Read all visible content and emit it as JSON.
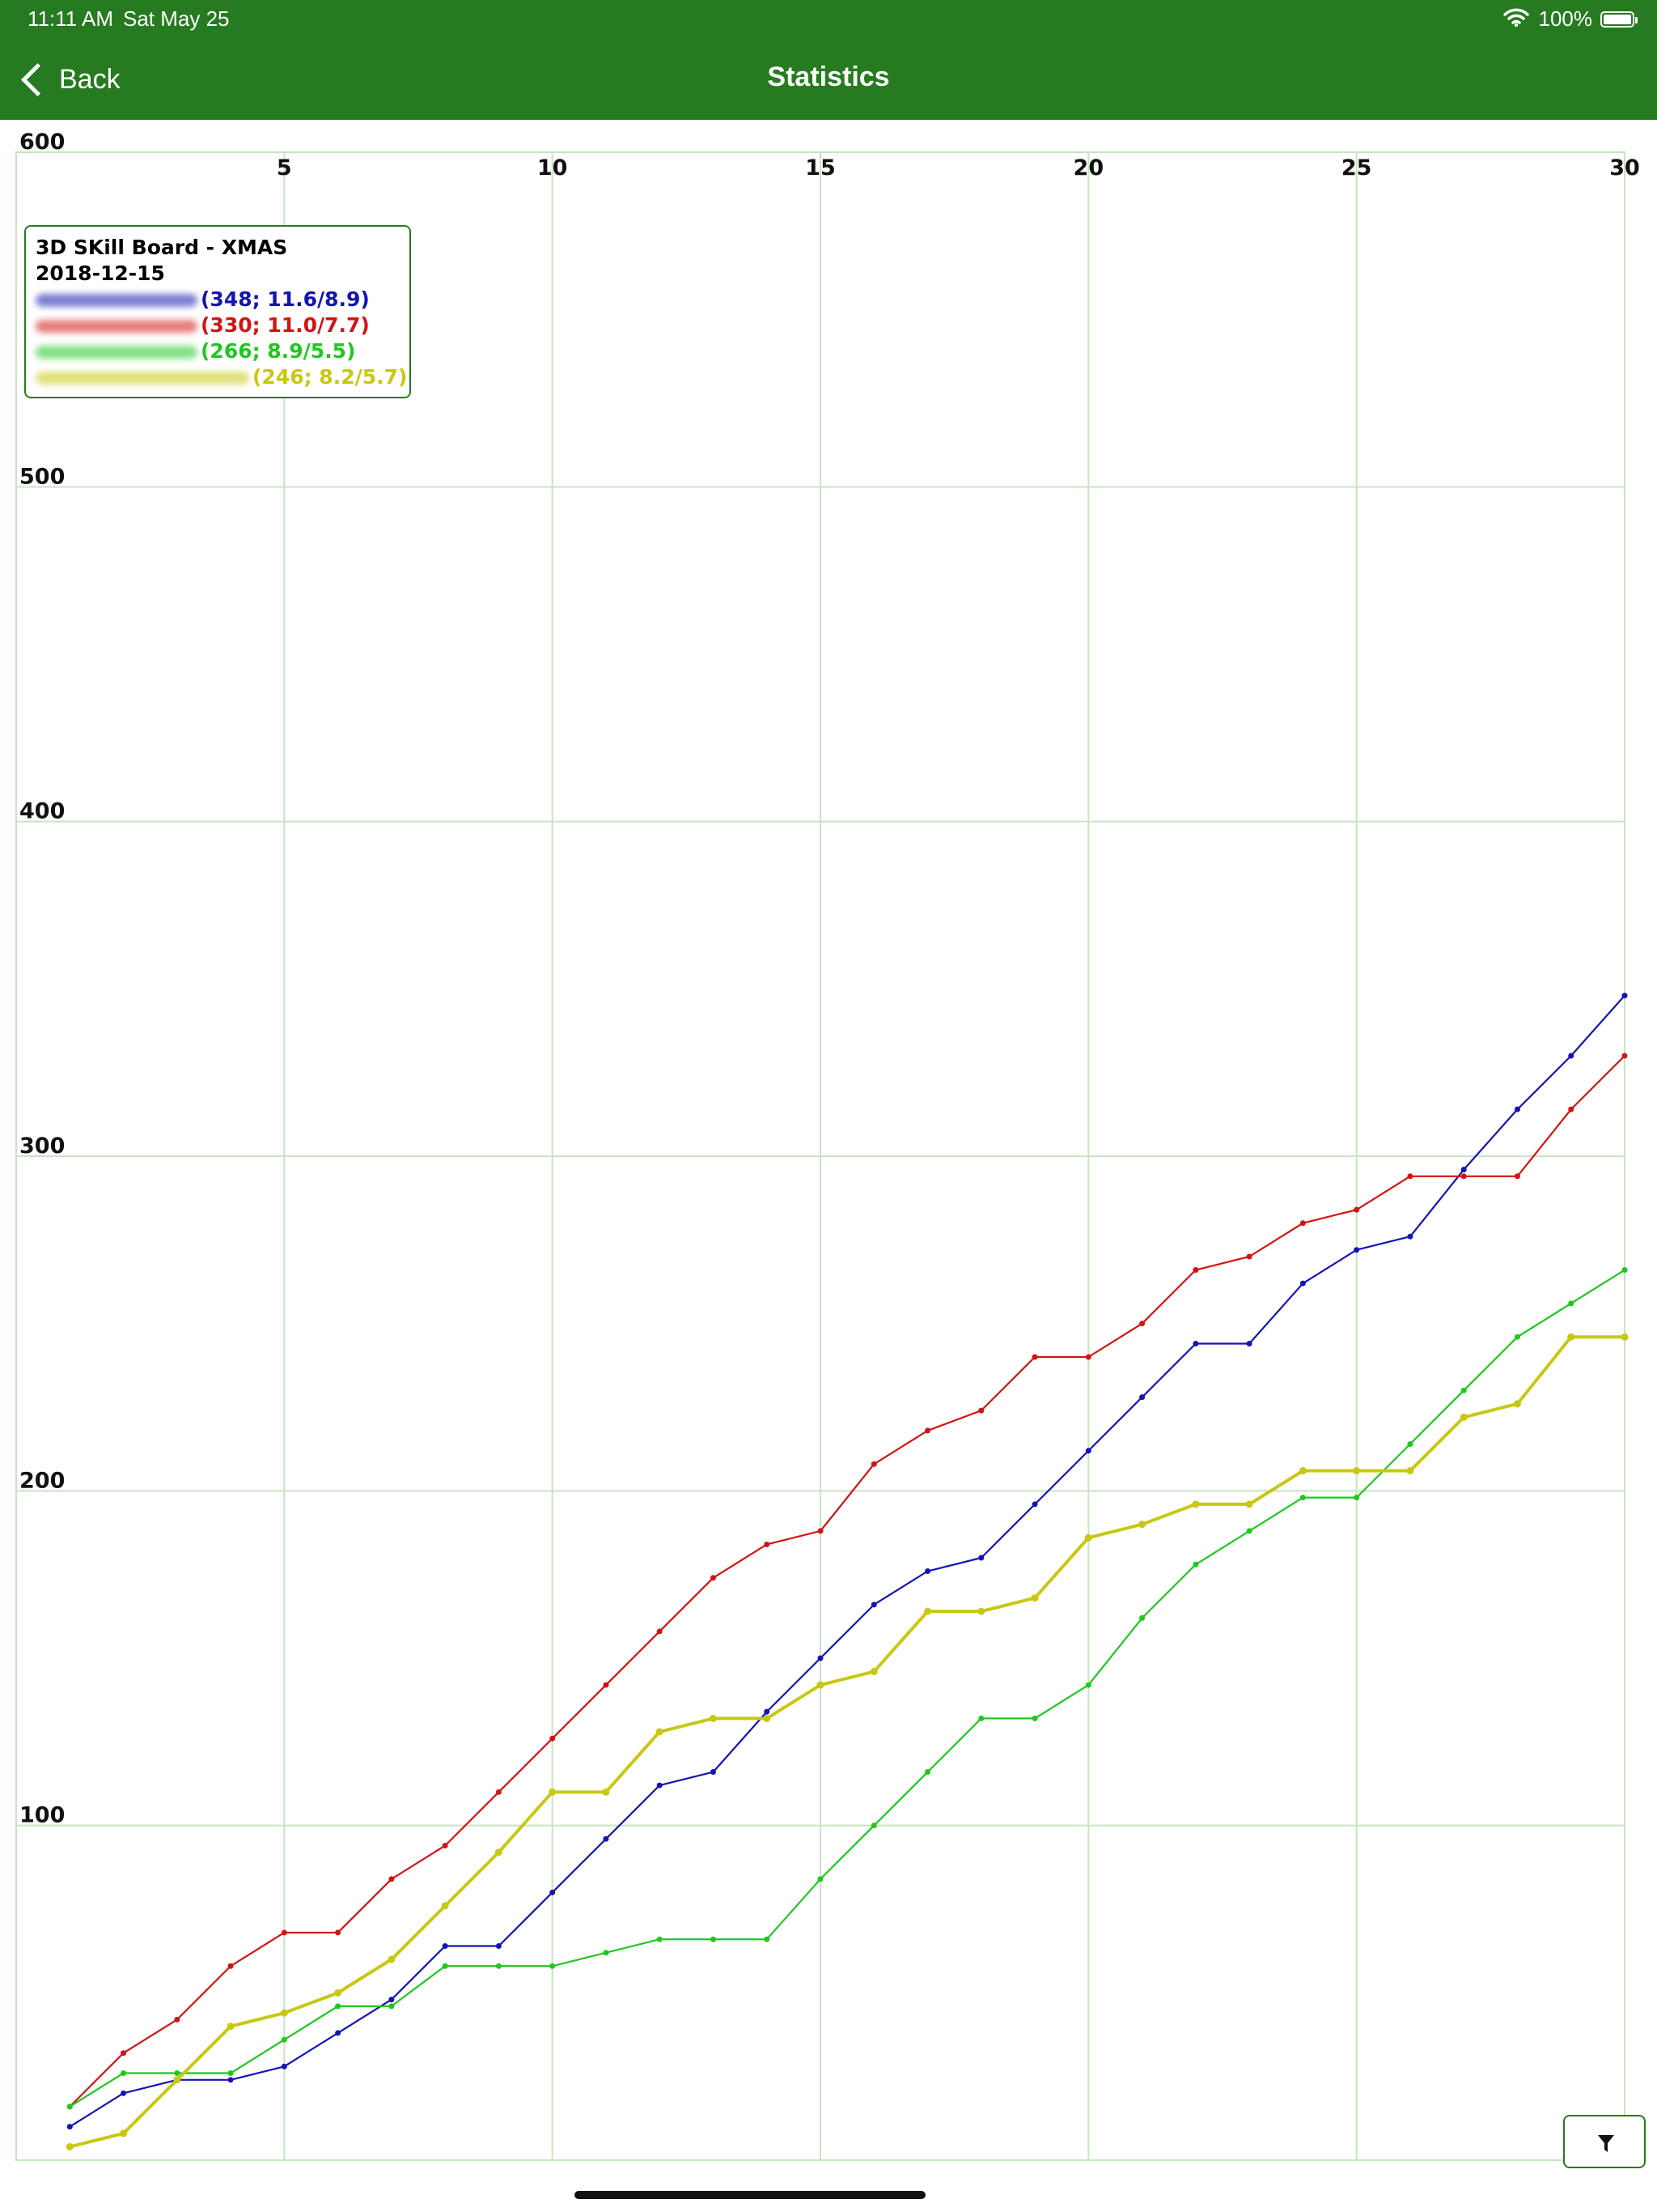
{
  "status_bar": {
    "time": "11:11 AM",
    "date": "Sat May 25",
    "battery": "100%",
    "icons": [
      "wifi-icon",
      "battery-icon"
    ]
  },
  "nav": {
    "back_label": "Back",
    "title": "Statistics"
  },
  "colors": {
    "bar": "#267a1f",
    "grid": "#c8e4c2",
    "blue": "#1414b4",
    "red": "#d21414",
    "green": "#1ec81e",
    "yellow": "#c8c814"
  },
  "legend": {
    "title": "3D SKill Board - XMAS",
    "date": "2018-12-15",
    "entries": [
      {
        "label": "(348; 11.6/8.9)",
        "color": "#1414b4"
      },
      {
        "label": "(330; 11.0/7.7)",
        "color": "#d21414"
      },
      {
        "label": "(266; 8.9/5.5)",
        "color": "#1ec81e"
      },
      {
        "label": "(246; 8.2/5.7)",
        "color": "#c8c814"
      }
    ]
  },
  "chart_data": {
    "type": "line",
    "x": [
      1,
      2,
      3,
      4,
      5,
      6,
      7,
      8,
      9,
      10,
      11,
      12,
      13,
      14,
      15,
      16,
      17,
      18,
      19,
      20,
      21,
      22,
      23,
      24,
      25,
      26,
      27,
      28,
      29,
      30
    ],
    "xticks": [
      "5",
      "10",
      "15",
      "20",
      "25",
      "30"
    ],
    "yticks": [
      "100",
      "200",
      "300",
      "400",
      "500",
      "600"
    ],
    "xlim": [
      0,
      30
    ],
    "ylim": [
      0,
      600
    ],
    "grid": true,
    "series": [
      {
        "color": "#1414b4",
        "values": [
          10,
          20,
          24,
          24,
          28,
          38,
          48,
          64,
          64,
          80,
          96,
          112,
          116,
          134,
          150,
          166,
          176,
          180,
          196,
          212,
          228,
          244,
          244,
          262,
          272,
          276,
          296,
          314,
          330,
          348
        ]
      },
      {
        "color": "#d21414",
        "values": [
          16,
          32,
          42,
          58,
          68,
          68,
          84,
          94,
          110,
          126,
          142,
          158,
          174,
          184,
          188,
          208,
          218,
          224,
          240,
          240,
          250,
          266,
          270,
          280,
          284,
          294,
          294,
          294,
          314,
          330
        ]
      },
      {
        "color": "#1ec81e",
        "values": [
          16,
          26,
          26,
          26,
          36,
          46,
          46,
          58,
          58,
          58,
          62,
          66,
          66,
          66,
          84,
          100,
          116,
          132,
          132,
          142,
          162,
          178,
          188,
          198,
          198,
          214,
          230,
          246,
          256,
          266
        ]
      },
      {
        "color": "#c8c814",
        "values": [
          4,
          8,
          24,
          40,
          44,
          50,
          60,
          76,
          92,
          110,
          110,
          128,
          132,
          132,
          142,
          146,
          164,
          164,
          168,
          186,
          190,
          196,
          196,
          206,
          206,
          206,
          222,
          226,
          246,
          246
        ]
      }
    ]
  }
}
